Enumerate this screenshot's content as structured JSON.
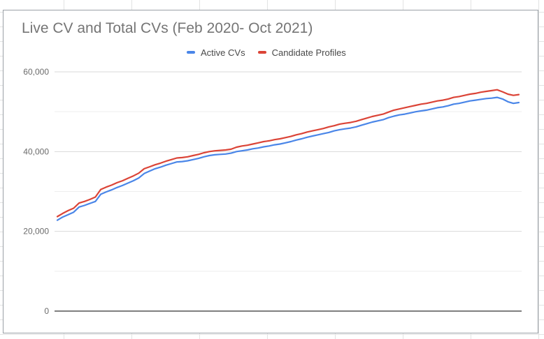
{
  "chart_data": {
    "type": "line",
    "title": "Live CV and Total CVs (Feb 2020- Oct 2021)",
    "xlabel": "",
    "ylabel": "",
    "ylim": [
      0,
      60000
    ],
    "yticks": [
      "0",
      "20,000",
      "40,000",
      "60,000"
    ],
    "ytick_values": [
      0,
      20000,
      40000,
      60000
    ],
    "grid": true,
    "legend_position": "top",
    "series": [
      {
        "name": "Active CVs",
        "color": "#4a86e8",
        "values": [
          22800,
          23600,
          24200,
          24800,
          26100,
          26500,
          27000,
          27500,
          29300,
          29900,
          30400,
          31000,
          31500,
          32100,
          32700,
          33400,
          34500,
          35100,
          35700,
          36100,
          36600,
          37000,
          37400,
          37500,
          37700,
          38000,
          38300,
          38700,
          39000,
          39200,
          39300,
          39400,
          39600,
          40000,
          40200,
          40400,
          40700,
          40900,
          41200,
          41400,
          41700,
          41900,
          42200,
          42500,
          42900,
          43200,
          43600,
          43900,
          44200,
          44500,
          44800,
          45200,
          45500,
          45700,
          45900,
          46200,
          46600,
          47000,
          47400,
          47700,
          48000,
          48500,
          48900,
          49200,
          49400,
          49700,
          50000,
          50200,
          50400,
          50700,
          51000,
          51200,
          51500,
          51900,
          52100,
          52400,
          52700,
          52900,
          53100,
          53300,
          53400,
          53600,
          53200,
          52500,
          52100,
          52300
        ]
      },
      {
        "name": "Candidate Profiles",
        "color": "#db4437",
        "values": [
          23700,
          24500,
          25200,
          25800,
          27100,
          27500,
          28000,
          28600,
          30500,
          31100,
          31600,
          32200,
          32700,
          33300,
          33900,
          34600,
          35700,
          36200,
          36700,
          37100,
          37600,
          38000,
          38400,
          38500,
          38700,
          39000,
          39300,
          39700,
          40000,
          40200,
          40300,
          40400,
          40600,
          41100,
          41400,
          41600,
          41900,
          42200,
          42500,
          42700,
          43000,
          43200,
          43500,
          43800,
          44200,
          44500,
          44900,
          45200,
          45500,
          45800,
          46200,
          46500,
          46900,
          47100,
          47300,
          47600,
          48000,
          48400,
          48800,
          49100,
          49400,
          49900,
          50400,
          50700,
          51000,
          51300,
          51600,
          51900,
          52100,
          52400,
          52700,
          52900,
          53200,
          53600,
          53800,
          54100,
          54400,
          54600,
          54900,
          55100,
          55300,
          55500,
          55000,
          54400,
          54100,
          54300
        ]
      }
    ]
  }
}
